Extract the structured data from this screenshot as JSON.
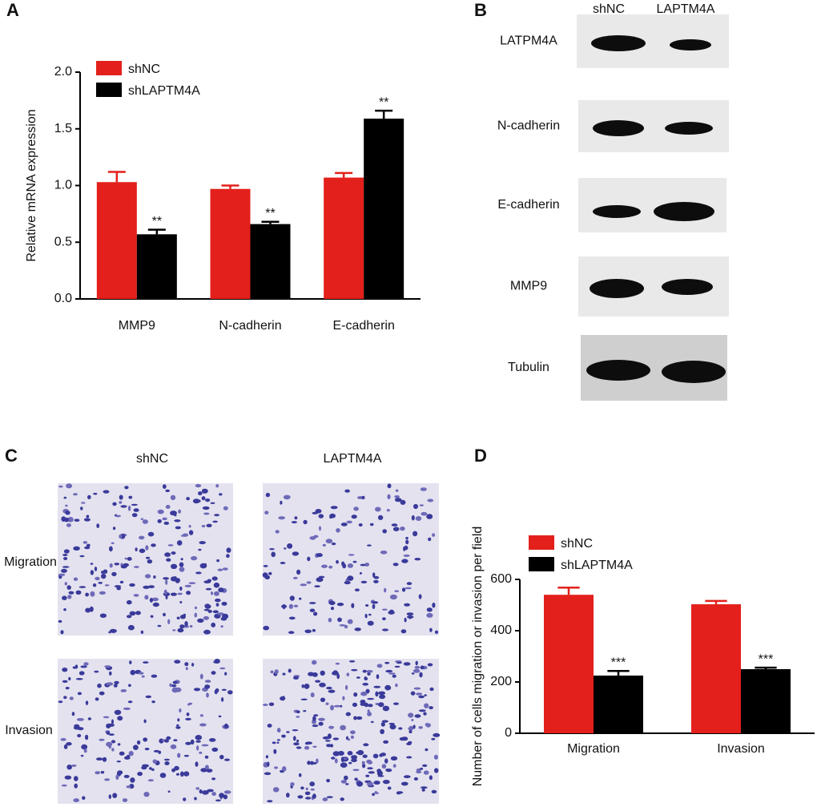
{
  "panel_labels": [
    "A",
    "B",
    "C",
    "D"
  ],
  "western_blot": {
    "columns": [
      "shNC",
      "LAPTM4A"
    ],
    "rows": [
      "LATPM4A",
      "N-cadherin",
      "E-cadherin",
      "MMP9",
      "Tubulin"
    ]
  },
  "transwell": {
    "columns": [
      "shNC",
      "LAPTM4A"
    ],
    "rows": [
      "Migration",
      "Invasion"
    ]
  },
  "chart_data": [
    {
      "type": "bar",
      "ylabel": "Relative  mRNA expression",
      "categories": [
        "MMP9",
        "N-cadherin",
        "E-cadherin"
      ],
      "series": [
        {
          "name": "shNC",
          "color": "#e3201b",
          "values": [
            1.03,
            0.97,
            1.07
          ],
          "errors": [
            0.09,
            0.03,
            0.04
          ]
        },
        {
          "name": "shLAPTM4A",
          "color": "#000000",
          "values": [
            0.57,
            0.66,
            1.59
          ],
          "errors": [
            0.04,
            0.02,
            0.07
          ],
          "significance": [
            "**",
            "**",
            "**"
          ]
        }
      ],
      "ylim": [
        0,
        2
      ],
      "yticks": [
        {
          "value": 0,
          "label": "0.0"
        },
        0.5,
        {
          "value": 1,
          "label": "1.0"
        },
        1.5,
        {
          "value": 2,
          "label": "2.0"
        }
      ],
      "grid": false
    },
    {
      "type": "bar",
      "ylabel": "Number of cells migration or invasion per field",
      "categories": [
        "Migration",
        "Invasion"
      ],
      "series": [
        {
          "name": "shNC",
          "color": "#e3201b",
          "values": [
            540,
            503
          ],
          "errors": [
            28,
            13
          ]
        },
        {
          "name": "shLAPTM4A",
          "color": "#000000",
          "values": [
            225,
            250
          ],
          "errors": [
            18,
            6
          ],
          "significance": [
            "***",
            "***"
          ]
        }
      ],
      "ylim": [
        0,
        600
      ],
      "yticks": [
        0,
        200,
        400,
        600
      ],
      "grid": false
    }
  ]
}
